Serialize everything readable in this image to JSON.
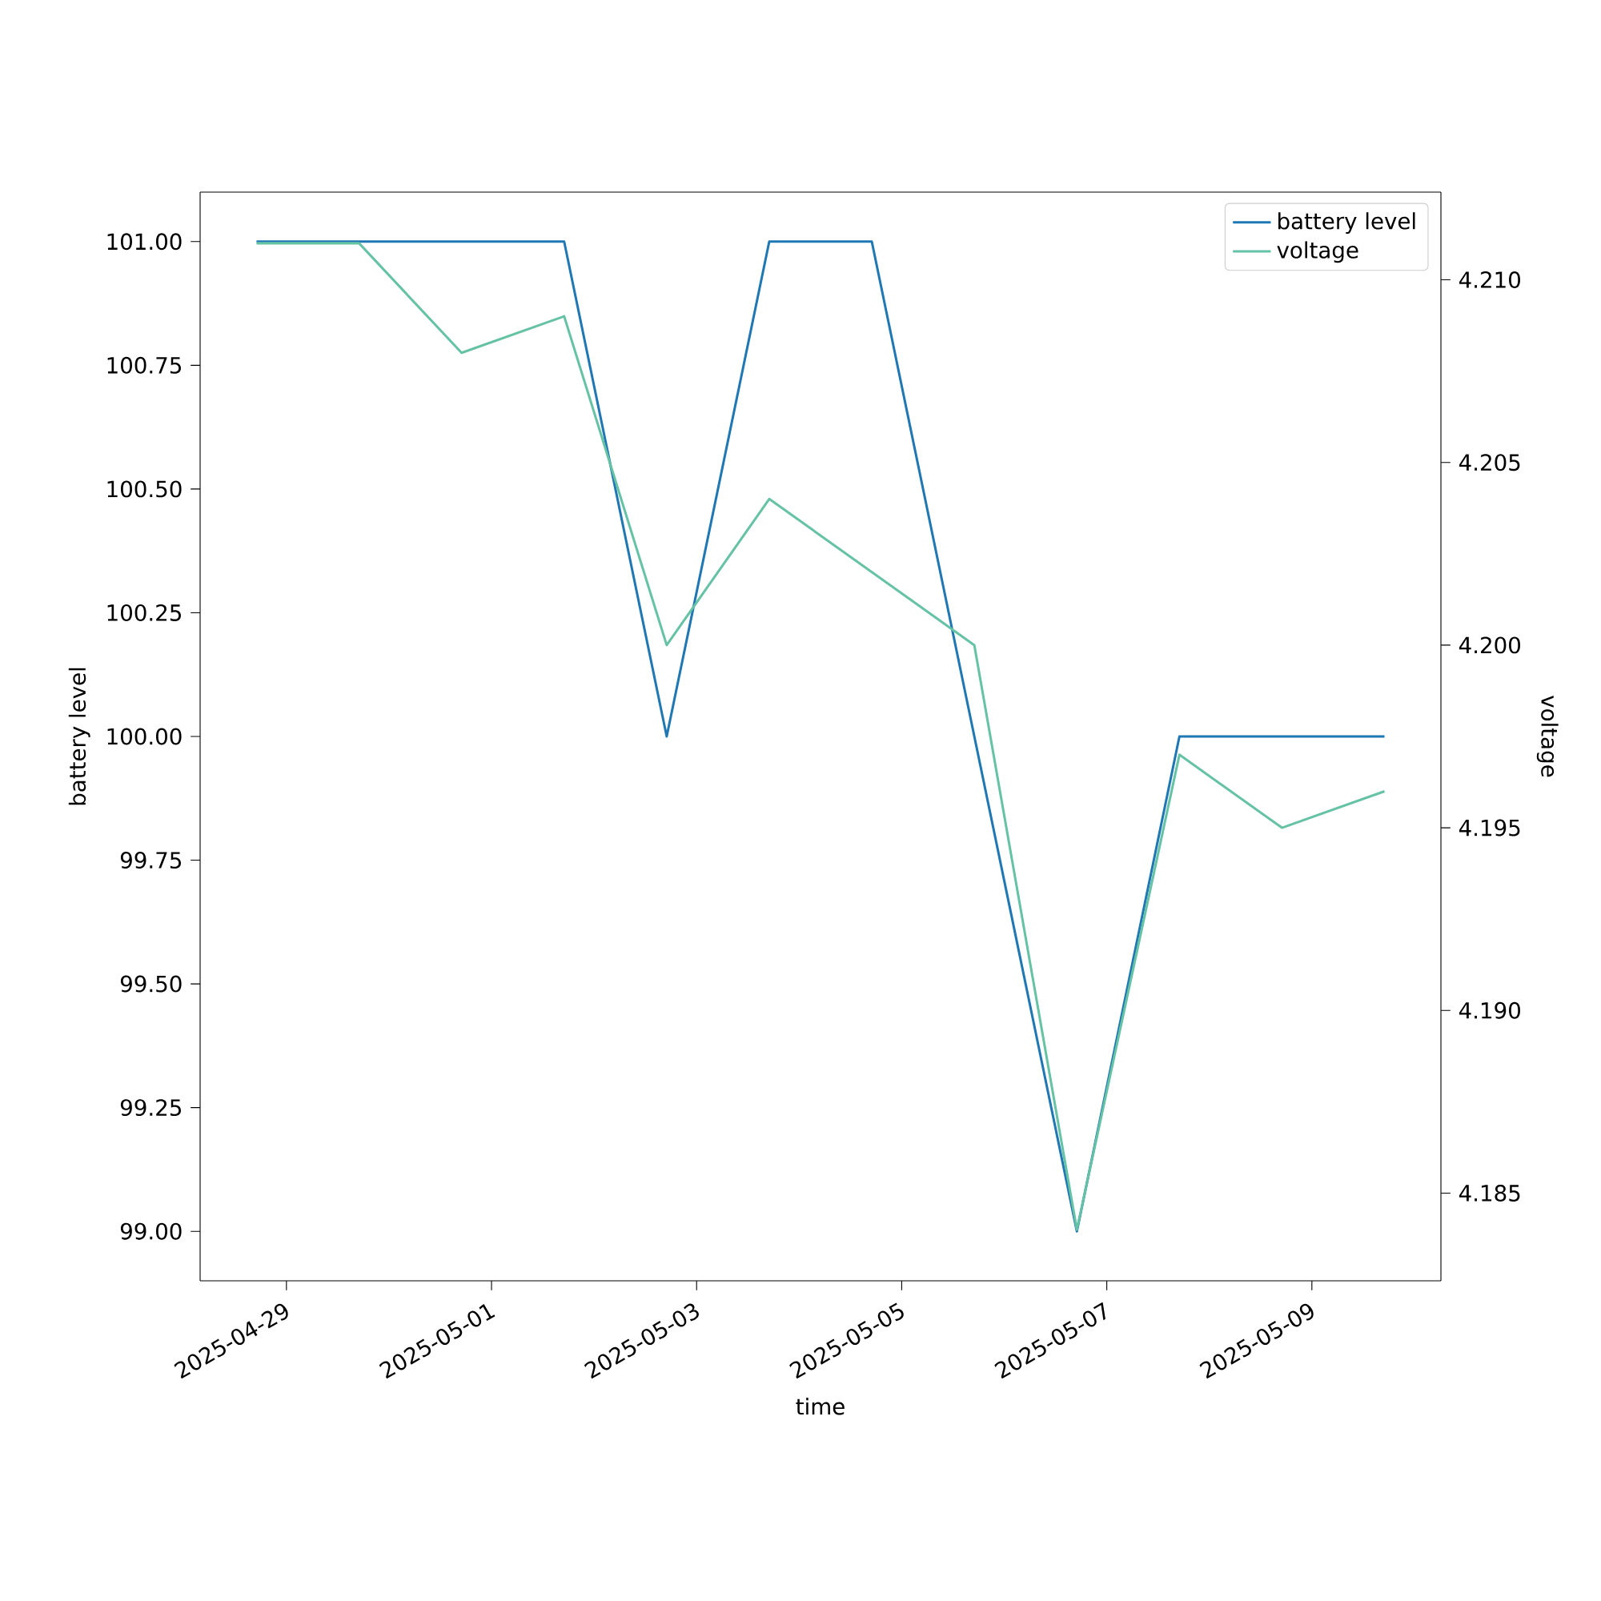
{
  "chart_data": {
    "type": "line",
    "xlabel": "time",
    "ylabel": "battery level",
    "y2label": "voltage",
    "x": [
      "2025-04-28T17:00",
      "2025-04-29T17:00",
      "2025-04-30T17:00",
      "2025-05-01T17:00",
      "2025-05-02T17:00",
      "2025-05-03T17:00",
      "2025-05-04T17:00",
      "2025-05-05T17:00",
      "2025-05-06T17:00",
      "2025-05-07T17:00",
      "2025-05-08T17:00",
      "2025-05-09T17:00"
    ],
    "series": [
      {
        "name": "battery level",
        "color": "#1f77b4",
        "values": [
          101,
          101,
          101,
          101,
          100,
          101,
          101,
          100,
          99,
          100,
          100,
          100
        ]
      },
      {
        "name": "voltage",
        "color": "#66c2a5",
        "axis": "y2",
        "values": [
          4.211,
          4.211,
          4.208,
          4.209,
          4.2,
          4.204,
          4.202,
          4.2,
          4.184,
          4.197,
          4.195,
          4.196
        ]
      }
    ],
    "xlim": [
      "2025-04-28T03:48",
      "2025-05-10T06:12"
    ],
    "xticks": [
      "2025-04-29",
      "2025-05-01",
      "2025-05-03",
      "2025-05-05",
      "2025-05-07",
      "2025-05-09"
    ],
    "ylim": [
      98.9,
      101.1
    ],
    "yticks": [
      {
        "value": 99,
        "label": "99.00"
      },
      {
        "value": 99.25,
        "label": "99.25"
      },
      {
        "value": 99.5,
        "label": "99.50"
      },
      {
        "value": 99.75,
        "label": "99.75"
      },
      {
        "value": 100,
        "label": "100.00"
      },
      {
        "value": 100.25,
        "label": "100.25"
      },
      {
        "value": 100.5,
        "label": "100.50"
      },
      {
        "value": 100.75,
        "label": "100.75"
      },
      {
        "value": 101,
        "label": "101.00"
      }
    ],
    "y2lim": [
      4.1826,
      4.2124
    ],
    "y2ticks": [
      {
        "value": 4.185,
        "label": "4.185"
      },
      {
        "value": 4.19,
        "label": "4.190"
      },
      {
        "value": 4.195,
        "label": "4.195"
      },
      {
        "value": 4.2,
        "label": "4.200"
      },
      {
        "value": 4.205,
        "label": "4.205"
      },
      {
        "value": 4.21,
        "label": "4.210"
      }
    ],
    "legend": "top right",
    "grid": false
  }
}
